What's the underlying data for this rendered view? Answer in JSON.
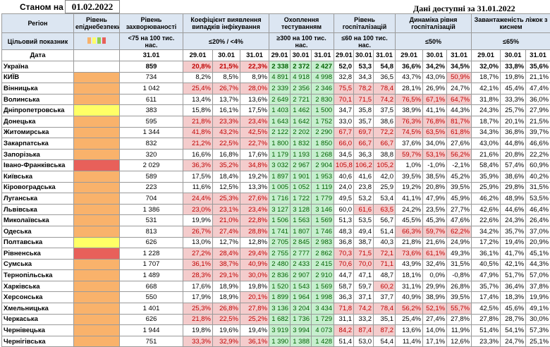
{
  "header": {
    "stan_label": "Станом на",
    "stan_date": "01.02.2022",
    "data_label": "Дані доступні за 31.01.2022"
  },
  "columns": {
    "region": "Регіон",
    "level": "Рівень епіднебезпеки",
    "incidence": "Рівень захворюваності",
    "detect": "Коефіцієнт виявлення випадків інфікування",
    "testing": "Охоплення тестуванням",
    "hosp": "Рівень госпіталізацій",
    "dyn": "Динаміка рівня госпіталізацій",
    "beds": "Завантаженість ліжок з киснем"
  },
  "target": {
    "label": "Цільовий показник",
    "incidence": "<75 на 100 тис. нас.",
    "detect": "≤20% / <4%",
    "testing": "≥300 на 100 тис. нас.",
    "hosp": "≤60 на 100 тис. нас.",
    "dyn": "≤50%",
    "beds": "≤65%"
  },
  "dates": {
    "label": "Дата",
    "incidence": "31.01",
    "detect": [
      "29.01",
      "30.01",
      "31.01"
    ],
    "testing": [
      "29.01",
      "30.01",
      "31.01"
    ],
    "hosp": [
      "29.01",
      "30.01",
      "31.01"
    ],
    "dyn": [
      "29.01",
      "30.01",
      "31.01"
    ],
    "beds": [
      "29.01",
      "30.01",
      "31.01"
    ]
  },
  "colors": {
    "orange": "#f9b26b",
    "yellow": "#ffff66",
    "red": "#e8605a",
    "green": "#92d050"
  },
  "rows": [
    {
      "region": "Україна",
      "level": "",
      "inc": "859",
      "det": [
        "20,8%",
        "21,5%",
        "22,3%"
      ],
      "tst": [
        "2 338",
        "2 372",
        "2 427"
      ],
      "hos": [
        "52,0",
        "53,3",
        "54,8"
      ],
      "dyn": [
        "36,6%",
        "34,2%",
        "34,5%"
      ],
      "bed": [
        "32,0%",
        "33,8%",
        "35,6%"
      ]
    },
    {
      "region": "КИЇВ",
      "level": "orange",
      "inc": "734",
      "det": [
        "8,2%",
        "8,5%",
        "8,9%"
      ],
      "tst": [
        "4 891",
        "4 918",
        "4 998"
      ],
      "hos": [
        "32,8",
        "34,3",
        "36,5"
      ],
      "dyn": [
        "43,7%",
        "43,0%",
        "50,9%"
      ],
      "bed": [
        "18,7%",
        "19,8%",
        "21,1%"
      ]
    },
    {
      "region": "Вінницька",
      "level": "orange",
      "inc": "1 042",
      "det": [
        "25,4%",
        "26,7%",
        "28,0%"
      ],
      "tst": [
        "2 339",
        "2 356",
        "2 346"
      ],
      "hos": [
        "75,5",
        "78,2",
        "78,4"
      ],
      "dyn": [
        "28,1%",
        "26,9%",
        "24,7%"
      ],
      "bed": [
        "42,1%",
        "45,4%",
        "47,4%"
      ]
    },
    {
      "region": "Волинська",
      "level": "orange",
      "inc": "611",
      "det": [
        "13,4%",
        "13,7%",
        "13,6%"
      ],
      "tst": [
        "2 649",
        "2 721",
        "2 830"
      ],
      "hos": [
        "70,1",
        "71,5",
        "74,2"
      ],
      "dyn": [
        "76,5%",
        "67,1%",
        "64,7%"
      ],
      "bed": [
        "31,8%",
        "33,3%",
        "36,0%"
      ]
    },
    {
      "region": "Дніпропетровська",
      "level": "yellow",
      "inc": "383",
      "det": [
        "15,8%",
        "16,1%",
        "17,5%"
      ],
      "tst": [
        "1 403",
        "1 462",
        "1 500"
      ],
      "hos": [
        "34,7",
        "35,8",
        "37,5"
      ],
      "dyn": [
        "38,9%",
        "41,1%",
        "44,3%"
      ],
      "bed": [
        "24,3%",
        "25,7%",
        "27,9%"
      ]
    },
    {
      "region": "Донецька",
      "level": "orange",
      "inc": "595",
      "det": [
        "21,8%",
        "23,3%",
        "23,4%"
      ],
      "tst": [
        "1 643",
        "1 642",
        "1 752"
      ],
      "hos": [
        "33,0",
        "35,7",
        "38,6"
      ],
      "dyn": [
        "76,3%",
        "76,8%",
        "81,7%"
      ],
      "bed": [
        "18,7%",
        "20,1%",
        "21,5%"
      ]
    },
    {
      "region": "Житомирська",
      "level": "orange",
      "inc": "1 344",
      "det": [
        "41,8%",
        "43,2%",
        "42,5%"
      ],
      "tst": [
        "2 122",
        "2 202",
        "2 290"
      ],
      "hos": [
        "67,7",
        "69,7",
        "72,2"
      ],
      "dyn": [
        "74,5%",
        "63,5%",
        "61,8%"
      ],
      "bed": [
        "34,3%",
        "36,8%",
        "39,7%"
      ]
    },
    {
      "region": "Закарпатська",
      "level": "orange",
      "inc": "832",
      "det": [
        "21,2%",
        "22,5%",
        "22,7%"
      ],
      "tst": [
        "1 800",
        "1 832",
        "1 850"
      ],
      "hos": [
        "66,0",
        "66,7",
        "66,7"
      ],
      "dyn": [
        "37,6%",
        "34,0%",
        "27,6%"
      ],
      "bed": [
        "43,0%",
        "44,8%",
        "46,6%"
      ]
    },
    {
      "region": "Запорізька",
      "level": "orange",
      "inc": "320",
      "det": [
        "16,6%",
        "16,8%",
        "17,6%"
      ],
      "tst": [
        "1 179",
        "1 193",
        "1 268"
      ],
      "hos": [
        "34,5",
        "36,3",
        "38,8"
      ],
      "dyn": [
        "59,7%",
        "53,1%",
        "56,2%"
      ],
      "bed": [
        "21,6%",
        "20,8%",
        "22,2%"
      ]
    },
    {
      "region": "Івано-Франківська",
      "level": "red",
      "inc": "2 029",
      "det": [
        "36,3%",
        "35,2%",
        "34,8%"
      ],
      "tst": [
        "3 032",
        "2 967",
        "2 904"
      ],
      "hos": [
        "105,8",
        "106,2",
        "105,2"
      ],
      "dyn": [
        "1,0%",
        "-1,0%",
        "-2,1%"
      ],
      "bed": [
        "58,4%",
        "57,4%",
        "60,9%"
      ]
    },
    {
      "region": "Київська",
      "level": "orange",
      "inc": "589",
      "det": [
        "17,5%",
        "18,4%",
        "19,2%"
      ],
      "tst": [
        "1 897",
        "1 901",
        "1 953"
      ],
      "hos": [
        "40,6",
        "41,6",
        "42,0"
      ],
      "dyn": [
        "39,5%",
        "38,5%",
        "45,2%"
      ],
      "bed": [
        "35,9%",
        "38,6%",
        "40,2%"
      ]
    },
    {
      "region": "Кіровоградська",
      "level": "orange",
      "inc": "223",
      "det": [
        "11,6%",
        "12,5%",
        "13,3%"
      ],
      "tst": [
        "1 005",
        "1 052",
        "1 119"
      ],
      "hos": [
        "24,0",
        "23,8",
        "25,9"
      ],
      "dyn": [
        "19,2%",
        "20,8%",
        "39,5%"
      ],
      "bed": [
        "25,9%",
        "29,8%",
        "31,5%"
      ]
    },
    {
      "region": "Луганська",
      "level": "orange",
      "inc": "704",
      "det": [
        "24,4%",
        "25,3%",
        "27,6%"
      ],
      "tst": [
        "1 716",
        "1 722",
        "1 779"
      ],
      "hos": [
        "49,5",
        "53,2",
        "53,4"
      ],
      "dyn": [
        "41,1%",
        "47,9%",
        "45,9%"
      ],
      "bed": [
        "46,2%",
        "48,9%",
        "53,5%"
      ]
    },
    {
      "region": "Львівська",
      "level": "orange",
      "inc": "1 386",
      "det": [
        "23,0%",
        "23,1%",
        "23,4%"
      ],
      "tst": [
        "3 127",
        "3 128",
        "3 146"
      ],
      "hos": [
        "60,0",
        "61,6",
        "63,5"
      ],
      "dyn": [
        "24,2%",
        "23,5%",
        "27,7%"
      ],
      "bed": [
        "42,6%",
        "44,6%",
        "46,4%"
      ]
    },
    {
      "region": "Миколаївська",
      "level": "orange",
      "inc": "531",
      "det": [
        "19,9%",
        "21,0%",
        "22,8%"
      ],
      "tst": [
        "1 506",
        "1 563",
        "1 569"
      ],
      "hos": [
        "51,3",
        "53,5",
        "56,7"
      ],
      "dyn": [
        "45,5%",
        "45,3%",
        "47,6%"
      ],
      "bed": [
        "22,6%",
        "24,3%",
        "26,4%"
      ]
    },
    {
      "region": "Одеська",
      "level": "orange",
      "inc": "813",
      "det": [
        "26,7%",
        "27,4%",
        "28,8%"
      ],
      "tst": [
        "1 741",
        "1 807",
        "1 746"
      ],
      "hos": [
        "48,3",
        "49,4",
        "51,4"
      ],
      "dyn": [
        "66,3%",
        "59,7%",
        "62,2%"
      ],
      "bed": [
        "34,2%",
        "35,7%",
        "37,0%"
      ]
    },
    {
      "region": "Полтавська",
      "level": "yellow",
      "inc": "626",
      "det": [
        "13,0%",
        "12,7%",
        "12,8%"
      ],
      "tst": [
        "2 705",
        "2 845",
        "2 983"
      ],
      "hos": [
        "36,8",
        "38,7",
        "40,3"
      ],
      "dyn": [
        "21,8%",
        "21,6%",
        "24,9%"
      ],
      "bed": [
        "17,2%",
        "19,4%",
        "20,9%"
      ]
    },
    {
      "region": "Рівненська",
      "level": "red",
      "inc": "1 228",
      "det": [
        "27,2%",
        "28,4%",
        "29,4%"
      ],
      "tst": [
        "2 755",
        "2 777",
        "2 862"
      ],
      "hos": [
        "70,3",
        "71,5",
        "72,1"
      ],
      "dyn": [
        "73,6%",
        "61,1%",
        "49,3%"
      ],
      "bed": [
        "36,1%",
        "41,7%",
        "45,1%"
      ]
    },
    {
      "region": "Сумська",
      "level": "orange",
      "inc": "1 707",
      "det": [
        "36,1%",
        "38,7%",
        "40,9%"
      ],
      "tst": [
        "2 480",
        "2 433",
        "2 415"
      ],
      "hos": [
        "70,6",
        "70,0",
        "71,1"
      ],
      "dyn": [
        "43,9%",
        "32,4%",
        "31,5%"
      ],
      "bed": [
        "40,5%",
        "42,1%",
        "44,3%"
      ]
    },
    {
      "region": "Тернопільська",
      "level": "orange",
      "inc": "1 489",
      "det": [
        "28,3%",
        "29,1%",
        "30,0%"
      ],
      "tst": [
        "2 836",
        "2 907",
        "2 910"
      ],
      "hos": [
        "44,7",
        "47,1",
        "48,7"
      ],
      "dyn": [
        "18,1%",
        "0,0%",
        "-0,8%"
      ],
      "bed": [
        "47,9%",
        "51,7%",
        "57,0%"
      ]
    },
    {
      "region": "Харківська",
      "level": "orange",
      "inc": "668",
      "det": [
        "17,6%",
        "18,9%",
        "19,8%"
      ],
      "tst": [
        "1 520",
        "1 543",
        "1 569"
      ],
      "hos": [
        "58,7",
        "59,7",
        "60,2"
      ],
      "dyn": [
        "31,1%",
        "29,9%",
        "26,8%"
      ],
      "bed": [
        "35,7%",
        "36,4%",
        "37,8%"
      ]
    },
    {
      "region": "Херсонська",
      "level": "orange",
      "inc": "550",
      "det": [
        "17,9%",
        "18,9%",
        "20,1%"
      ],
      "tst": [
        "1 899",
        "1 964",
        "1 998"
      ],
      "hos": [
        "36,3",
        "37,1",
        "37,7"
      ],
      "dyn": [
        "40,9%",
        "38,9%",
        "39,5%"
      ],
      "bed": [
        "17,4%",
        "18,3%",
        "19,9%"
      ]
    },
    {
      "region": "Хмельницька",
      "level": "orange",
      "inc": "1 401",
      "det": [
        "25,3%",
        "26,8%",
        "27,8%"
      ],
      "tst": [
        "3 136",
        "3 204",
        "3 434"
      ],
      "hos": [
        "71,8",
        "74,2",
        "78,4"
      ],
      "dyn": [
        "56,2%",
        "52,1%",
        "55,7%"
      ],
      "bed": [
        "42,5%",
        "45,6%",
        "49,1%"
      ]
    },
    {
      "region": "Черкаська",
      "level": "orange",
      "inc": "626",
      "det": [
        "21,8%",
        "22,5%",
        "25,2%"
      ],
      "tst": [
        "1 682",
        "1 736",
        "1 729"
      ],
      "hos": [
        "31,1",
        "33,2",
        "35,1"
      ],
      "dyn": [
        "25,4%",
        "27,4%",
        "27,8%"
      ],
      "bed": [
        "27,8%",
        "28,7%",
        "30,0%"
      ]
    },
    {
      "region": "Чернівецька",
      "level": "orange",
      "inc": "1 944",
      "det": [
        "19,8%",
        "19,6%",
        "19,4%"
      ],
      "tst": [
        "3 919",
        "3 994",
        "4 073"
      ],
      "hos": [
        "84,2",
        "87,4",
        "87,2"
      ],
      "dyn": [
        "13,6%",
        "14,0%",
        "11,9%"
      ],
      "bed": [
        "51,4%",
        "54,1%",
        "57,3%"
      ]
    },
    {
      "region": "Чернігівська",
      "level": "orange",
      "inc": "751",
      "det": [
        "33,3%",
        "32,9%",
        "36,1%"
      ],
      "tst": [
        "1 390",
        "1 388",
        "1 428"
      ],
      "hos": [
        "51,4",
        "53,0",
        "54,4"
      ],
      "dyn": [
        "11,4%",
        "17,1%",
        "12,6%"
      ],
      "bed": [
        "23,3%",
        "24,7%",
        "25,1%"
      ]
    }
  ]
}
